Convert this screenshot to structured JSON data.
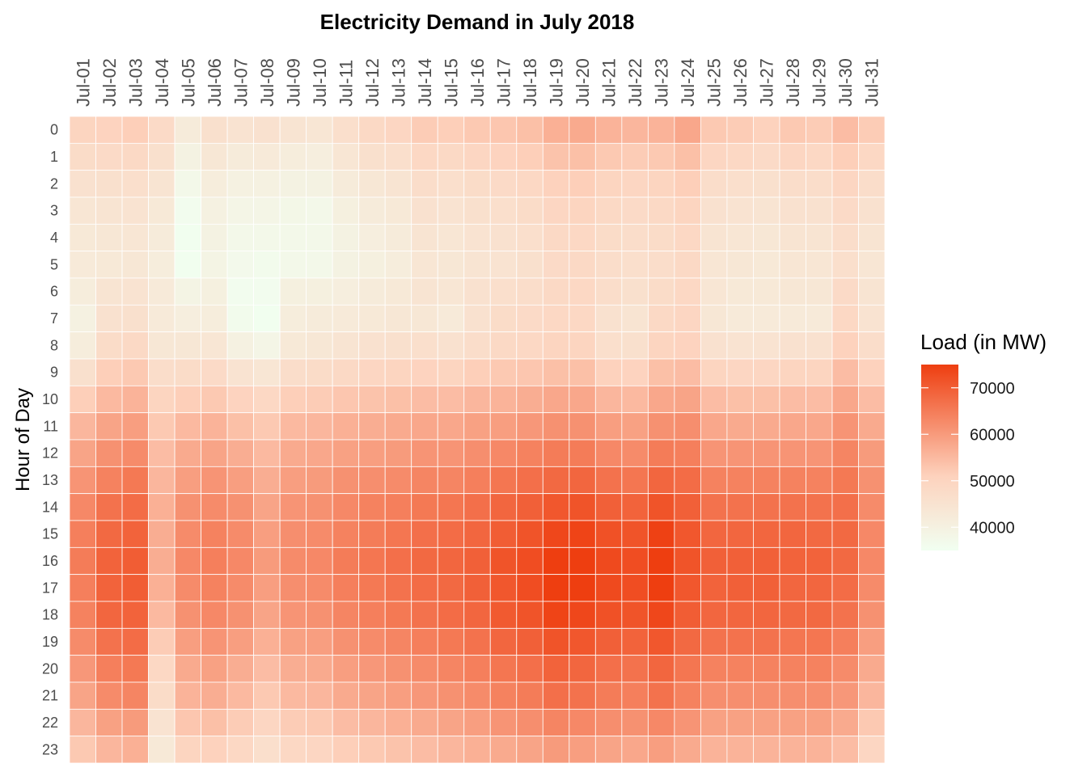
{
  "chart_data": {
    "type": "heatmap",
    "title": "Electricity Demand in July 2018",
    "xlabel": "",
    "ylabel": "Hour of Day",
    "x_position": "top",
    "categories_x": [
      "Jul-01",
      "Jul-02",
      "Jul-03",
      "Jul-04",
      "Jul-05",
      "Jul-06",
      "Jul-07",
      "Jul-08",
      "Jul-09",
      "Jul-10",
      "Jul-11",
      "Jul-12",
      "Jul-13",
      "Jul-14",
      "Jul-15",
      "Jul-16",
      "Jul-17",
      "Jul-18",
      "Jul-19",
      "Jul-20",
      "Jul-21",
      "Jul-22",
      "Jul-23",
      "Jul-24",
      "Jul-25",
      "Jul-26",
      "Jul-27",
      "Jul-28",
      "Jul-29",
      "Jul-30",
      "Jul-31"
    ],
    "categories_y": [
      "0",
      "1",
      "2",
      "3",
      "4",
      "5",
      "6",
      "7",
      "8",
      "9",
      "10",
      "11",
      "12",
      "13",
      "14",
      "15",
      "16",
      "17",
      "18",
      "19",
      "20",
      "21",
      "22",
      "23"
    ],
    "values": [
      [
        50000,
        50500,
        51500,
        48000,
        42000,
        46000,
        45000,
        45500,
        44500,
        44000,
        46500,
        48500,
        49500,
        52000,
        51500,
        52500,
        53000,
        54000,
        56500,
        57500,
        56000,
        55500,
        56000,
        58000,
        52500,
        52000,
        51000,
        52500,
        52000,
        54500,
        52000
      ],
      [
        47500,
        48000,
        48500,
        46000,
        39500,
        43500,
        42000,
        42500,
        41500,
        41000,
        44000,
        46000,
        46500,
        49000,
        48500,
        49500,
        50500,
        51500,
        53500,
        54000,
        52500,
        52000,
        52500,
        54000,
        49500,
        49000,
        48000,
        49500,
        49000,
        51500,
        49000
      ],
      [
        45500,
        46000,
        46500,
        44500,
        37500,
        41500,
        40000,
        40000,
        39500,
        39500,
        42000,
        43500,
        44500,
        47000,
        46500,
        47500,
        48000,
        49000,
        51000,
        51500,
        50000,
        49500,
        50000,
        51500,
        47000,
        46500,
        46000,
        47000,
        47000,
        49500,
        47000
      ],
      [
        44000,
        44500,
        45000,
        43000,
        36000,
        40000,
        38500,
        38500,
        38000,
        37500,
        40500,
        42000,
        43000,
        45500,
        45000,
        46000,
        46500,
        47500,
        49500,
        50000,
        48500,
        48000,
        48500,
        50000,
        45500,
        45000,
        44500,
        45500,
        45500,
        48000,
        45500
      ],
      [
        43000,
        43500,
        44000,
        42000,
        35500,
        39500,
        37500,
        37500,
        37500,
        37500,
        39500,
        41000,
        42000,
        44500,
        44000,
        45000,
        45500,
        46500,
        48500,
        49000,
        47500,
        47000,
        47500,
        49000,
        44500,
        44000,
        43500,
        44500,
        44500,
        47000,
        44500
      ],
      [
        42500,
        43000,
        43500,
        41500,
        35500,
        39000,
        37000,
        36500,
        37500,
        37500,
        39500,
        40500,
        41500,
        44000,
        43500,
        44500,
        45000,
        46000,
        48000,
        48500,
        47000,
        46500,
        47000,
        48500,
        44000,
        43500,
        43000,
        44000,
        44000,
        46500,
        44000
      ],
      [
        41500,
        44500,
        45000,
        42500,
        39000,
        40500,
        36000,
        36000,
        40500,
        40500,
        41000,
        42000,
        43000,
        44500,
        44000,
        45500,
        46500,
        47000,
        48500,
        49000,
        47000,
        46000,
        47500,
        49000,
        44000,
        43000,
        43000,
        43500,
        43500,
        48000,
        44500
      ],
      [
        40000,
        45500,
        46000,
        42500,
        41000,
        41500,
        36500,
        35500,
        41500,
        42000,
        42500,
        43000,
        43500,
        43500,
        42500,
        45500,
        47500,
        48000,
        49000,
        49000,
        45500,
        44500,
        48500,
        49500,
        43500,
        42500,
        42500,
        42500,
        42500,
        49000,
        45000
      ],
      [
        41500,
        47500,
        48500,
        43500,
        43500,
        44000,
        40000,
        38500,
        43000,
        43500,
        44500,
        45500,
        46000,
        46500,
        45500,
        47000,
        48500,
        49000,
        50000,
        50000,
        46500,
        46000,
        50000,
        50500,
        45500,
        45000,
        45000,
        45500,
        45500,
        51000,
        47000
      ],
      [
        46000,
        51500,
        52500,
        47000,
        47500,
        48000,
        45000,
        44000,
        47000,
        47500,
        48500,
        49500,
        50000,
        50500,
        50000,
        51500,
        52500,
        53000,
        54000,
        54000,
        51000,
        50500,
        54000,
        54500,
        50000,
        49500,
        49500,
        50000,
        50000,
        54500,
        51000
      ],
      [
        51500,
        55000,
        56000,
        50000,
        51500,
        52500,
        50500,
        49000,
        51500,
        52000,
        53000,
        53500,
        54000,
        54500,
        54500,
        55500,
        56000,
        57000,
        58000,
        58000,
        55500,
        55000,
        58000,
        58500,
        54500,
        54000,
        54000,
        54500,
        54500,
        58000,
        54500
      ],
      [
        55500,
        58500,
        59500,
        52500,
        55000,
        56000,
        54000,
        52500,
        55000,
        55500,
        56500,
        57000,
        57500,
        58000,
        58000,
        59000,
        59500,
        60500,
        61500,
        61500,
        59500,
        59000,
        61500,
        62000,
        58000,
        57500,
        57500,
        58000,
        58000,
        61000,
        57500
      ],
      [
        58500,
        61500,
        62500,
        54500,
        57500,
        58500,
        57000,
        55000,
        57500,
        58000,
        59000,
        59500,
        60000,
        61000,
        61000,
        62000,
        63000,
        64000,
        65000,
        65000,
        63000,
        62500,
        65000,
        64500,
        61000,
        61000,
        61000,
        61000,
        61000,
        63500,
        60000
      ],
      [
        61000,
        64000,
        65500,
        55500,
        59500,
        61000,
        59500,
        57000,
        59500,
        60000,
        61500,
        62000,
        62500,
        63500,
        63500,
        64500,
        66000,
        67000,
        68000,
        68500,
        66500,
        66000,
        68500,
        67500,
        64000,
        64000,
        64000,
        64000,
        64000,
        65500,
        61500
      ],
      [
        63000,
        66500,
        67500,
        56500,
        61500,
        62500,
        61500,
        58500,
        61000,
        61500,
        63000,
        64000,
        64500,
        65500,
        66000,
        67000,
        68500,
        69500,
        71000,
        71500,
        69500,
        69000,
        71500,
        69500,
        66500,
        66500,
        66500,
        66500,
        66500,
        67000,
        62500
      ],
      [
        64500,
        68000,
        69000,
        57000,
        62500,
        64000,
        62500,
        59500,
        62000,
        62500,
        64000,
        65000,
        66000,
        67000,
        67500,
        68500,
        70000,
        71500,
        73500,
        74000,
        72000,
        71500,
        74500,
        71000,
        68500,
        68500,
        68500,
        68500,
        68000,
        68000,
        63000
      ],
      [
        65000,
        69000,
        70000,
        57000,
        63000,
        64500,
        63000,
        60000,
        62500,
        63000,
        65000,
        66000,
        67000,
        68000,
        68500,
        69500,
        71500,
        72500,
        75000,
        75000,
        73000,
        72500,
        75000,
        71500,
        69500,
        69500,
        69500,
        69000,
        69000,
        68000,
        63000
      ],
      [
        64500,
        69000,
        70000,
        56500,
        62500,
        64000,
        62500,
        59500,
        62000,
        62500,
        64500,
        65500,
        66500,
        67500,
        68000,
        69500,
        71000,
        72500,
        75000,
        75000,
        73000,
        72500,
        75000,
        71000,
        69000,
        69500,
        69500,
        68500,
        68500,
        67500,
        62500
      ],
      [
        64000,
        68500,
        69000,
        55000,
        61500,
        63000,
        61500,
        58500,
        61000,
        61500,
        63500,
        64500,
        65500,
        66500,
        67500,
        68500,
        70500,
        71500,
        74000,
        73500,
        72000,
        71500,
        73500,
        70000,
        68500,
        68500,
        68500,
        68000,
        68000,
        66500,
        61500
      ],
      [
        62500,
        66500,
        67500,
        52000,
        59500,
        61000,
        59500,
        56500,
        59000,
        59500,
        61500,
        62500,
        63500,
        64500,
        65500,
        66500,
        68500,
        69500,
        71500,
        71000,
        69500,
        69000,
        71000,
        68000,
        66500,
        66500,
        66500,
        66000,
        66000,
        64500,
        59500
      ],
      [
        60500,
        64500,
        65500,
        49000,
        57500,
        59000,
        57000,
        54500,
        57000,
        57500,
        59500,
        60500,
        61500,
        62500,
        63500,
        64500,
        66000,
        67000,
        69000,
        68500,
        67000,
        66500,
        68500,
        66000,
        64000,
        64000,
        64000,
        64000,
        64000,
        62500,
        57500
      ],
      [
        58500,
        62500,
        63500,
        47500,
        56000,
        57000,
        55000,
        52500,
        55000,
        55500,
        57500,
        58500,
        59500,
        60500,
        61500,
        62500,
        64000,
        65000,
        67000,
        66500,
        65000,
        64500,
        66500,
        64000,
        62000,
        62000,
        62000,
        62000,
        62000,
        60500,
        55500
      ],
      [
        55500,
        59000,
        60000,
        45000,
        53000,
        54000,
        52000,
        49500,
        52000,
        52500,
        54500,
        55500,
        56500,
        57500,
        58500,
        59500,
        61000,
        62000,
        63500,
        63000,
        62000,
        61500,
        63000,
        61000,
        59000,
        59000,
        59000,
        59000,
        59000,
        57500,
        52500
      ],
      [
        52500,
        55500,
        56500,
        43000,
        50000,
        51000,
        49000,
        46500,
        49000,
        49500,
        51500,
        52500,
        53500,
        54500,
        55500,
        56500,
        57500,
        58500,
        60000,
        59500,
        58500,
        58000,
        59500,
        57500,
        56000,
        56000,
        56000,
        56000,
        56000,
        54500,
        49500
      ]
    ],
    "legend": {
      "title": "Load (in MW)",
      "placement": "right",
      "ticks": [
        40000,
        50000,
        60000,
        70000
      ],
      "tick_labels": [
        "40000",
        "50000",
        "60000",
        "70000"
      ],
      "range": [
        35000,
        75000
      ],
      "colors": {
        "low": "#f1fff1",
        "mid": "#fdd2bd",
        "high": "#ee3e10"
      }
    },
    "cell_border_color": "#ffffff"
  }
}
